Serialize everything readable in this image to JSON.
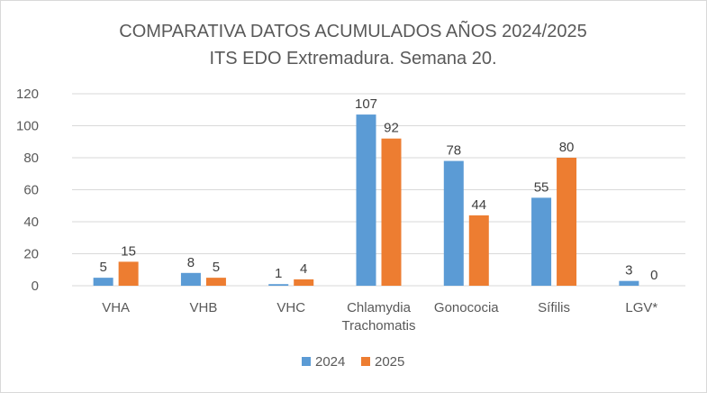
{
  "chart_data": {
    "type": "bar",
    "title": "COMPARATIVA DATOS ACUMULADOS AÑOS 2024/2025",
    "subtitle": "ITS EDO Extremadura. Semana 20.",
    "categories": [
      [
        "VHA"
      ],
      [
        "VHB"
      ],
      [
        "VHC"
      ],
      [
        "Chlamydia",
        "Trachomatis"
      ],
      [
        "Gonococia"
      ],
      [
        "Sífilis"
      ],
      [
        "LGV*"
      ]
    ],
    "series": [
      {
        "name": "2024",
        "color": "#5b9bd5",
        "values": [
          5,
          8,
          1,
          107,
          78,
          55,
          3
        ]
      },
      {
        "name": "2025",
        "color": "#ed7d31",
        "values": [
          15,
          5,
          4,
          92,
          44,
          80,
          0
        ]
      }
    ],
    "y_ticks": [
      "0",
      "20",
      "40",
      "60",
      "80",
      "100",
      "120"
    ],
    "ylim": [
      0,
      120
    ],
    "grid": true,
    "legend_position": "bottom"
  }
}
